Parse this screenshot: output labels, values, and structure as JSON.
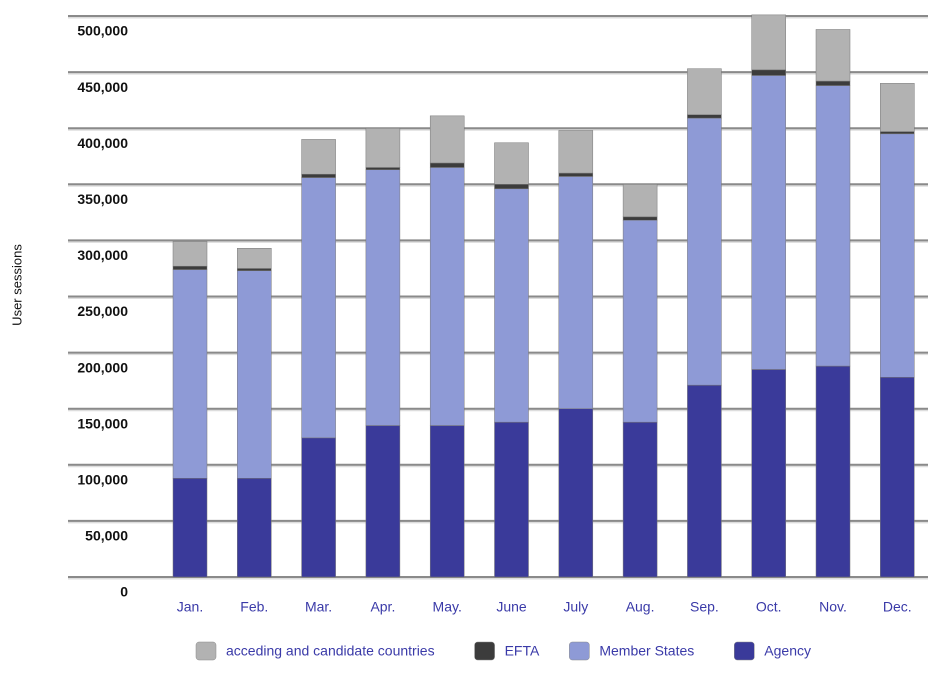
{
  "chart_data": {
    "type": "stacked-bar",
    "y_label": "User sessions",
    "categories": [
      "Jan.",
      "Feb.",
      "Mar.",
      "Apr.",
      "May.",
      "June",
      "July",
      "Aug.",
      "Sep.",
      "Oct.",
      "Nov.",
      "Dec."
    ],
    "series": [
      {
        "name": "acceding and candidate countries",
        "color": "#b2b2b2",
        "values": [
          22000,
          18000,
          31000,
          35000,
          42000,
          37000,
          38000,
          29000,
          41000,
          49000,
          46000,
          43000
        ]
      },
      {
        "name": "EFTA",
        "color": "#3c3c3c",
        "values": [
          3000,
          2000,
          3000,
          2000,
          4000,
          4000,
          3000,
          3000,
          3000,
          5000,
          4000,
          2000
        ]
      },
      {
        "name": "Member States",
        "color": "#8e9ad6",
        "values": [
          186000,
          185000,
          232000,
          228000,
          230000,
          208000,
          207000,
          180000,
          238000,
          262000,
          250000,
          217000
        ]
      },
      {
        "name": "Agency",
        "color": "#3a3a9a",
        "values": [
          88000,
          88000,
          124000,
          135000,
          135000,
          138000,
          150000,
          138000,
          171000,
          185000,
          188000,
          178000
        ]
      }
    ],
    "ylim": [
      0,
      500000
    ],
    "yticks": [
      0,
      {
        "value": 50000,
        "label": "50,000"
      },
      {
        "value": 100000,
        "label": "100,000"
      },
      {
        "value": 150000,
        "label": "150,000"
      },
      {
        "value": 200000,
        "label": "200,000"
      },
      {
        "value": 250000,
        "label": "250,000"
      },
      {
        "value": 300000,
        "label": "300,000"
      },
      {
        "value": 350000,
        "label": "350,000"
      },
      {
        "value": 400000,
        "label": "400,000"
      },
      {
        "value": 450000,
        "label": "450,000"
      },
      {
        "value": 500000,
        "label": "500,000"
      }
    ],
    "grid": true
  }
}
